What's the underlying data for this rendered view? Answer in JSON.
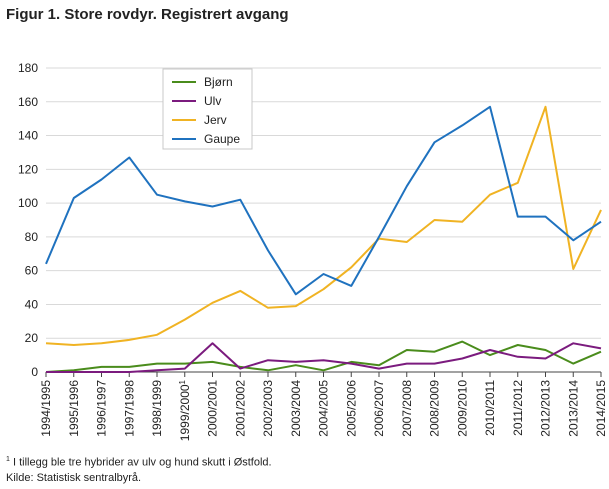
{
  "title": "Figur 1. Store rovdyr. Registrert avgang",
  "footnote": {
    "marker": "1",
    "text": " I tillegg ble tre hybrider av ulv og hund skutt i Østfold."
  },
  "source": "Kilde: Statistisk sentralbyrå.",
  "chart_data": {
    "type": "line",
    "title": "Figur 1. Store rovdyr. Registrert avgang",
    "xlabel": "",
    "ylabel": "",
    "ylim": [
      0,
      180
    ],
    "yticks": [
      0,
      20,
      40,
      60,
      80,
      100,
      120,
      140,
      160,
      180
    ],
    "grid": "horizontal",
    "legend_position": "top-left",
    "categories": [
      "1994/1995",
      "1995/1996",
      "1996/1997",
      "1997/1998",
      "1998/1999",
      "1999/2000",
      "2000/2001",
      "2001/2002",
      "2002/2003",
      "2003/2004",
      "2004/2005",
      "2005/2006",
      "2006/2007",
      "2007/2008",
      "2008/2009",
      "2009/2010",
      "2010/2011",
      "2011/2012",
      "2012/2013",
      "2013/2014",
      "2014/2015"
    ],
    "category_notes": {
      "5": "1"
    },
    "series": [
      {
        "name": "Bjørn",
        "color": "#4a8c1c",
        "values": [
          0,
          1,
          3,
          3,
          5,
          5,
          6,
          3,
          1,
          4,
          1,
          6,
          4,
          13,
          12,
          18,
          10,
          16,
          13,
          5,
          12
        ]
      },
      {
        "name": "Ulv",
        "color": "#7b1b7e",
        "values": [
          0,
          0,
          0,
          0,
          1,
          2,
          17,
          2,
          7,
          6,
          7,
          5,
          2,
          5,
          5,
          8,
          13,
          9,
          8,
          17,
          14
        ]
      },
      {
        "name": "Jerv",
        "color": "#f0b323",
        "values": [
          17,
          16,
          17,
          19,
          22,
          31,
          41,
          48,
          38,
          39,
          49,
          62,
          79,
          77,
          90,
          89,
          105,
          112,
          157,
          61,
          96
        ]
      },
      {
        "name": "Gaupe",
        "color": "#1f72bf",
        "values": [
          64,
          103,
          114,
          127,
          105,
          101,
          98,
          102,
          72,
          46,
          58,
          51,
          80,
          110,
          136,
          146,
          157,
          92,
          92,
          78,
          89
        ]
      }
    ]
  }
}
